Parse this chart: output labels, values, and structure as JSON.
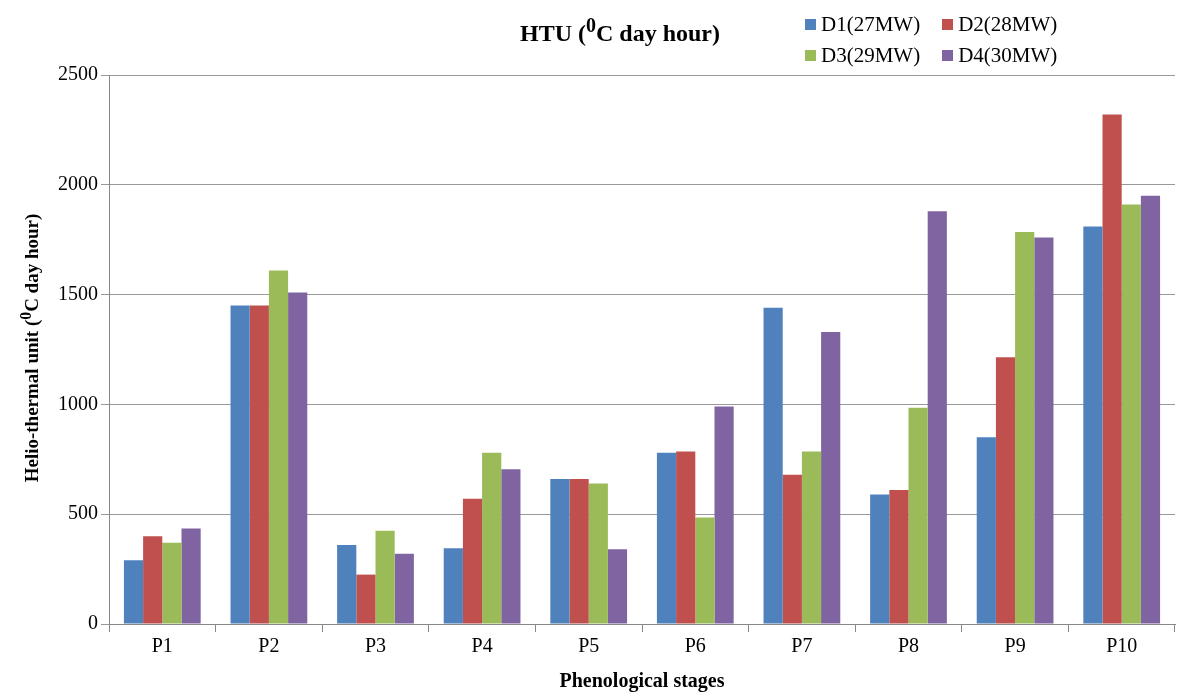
{
  "chart_data": {
    "type": "bar",
    "title": "HTU ($^{0}$C day hour)",
    "xlabel": "Phenological stages",
    "ylabel": "Helio-thermal unit ($^{0}$C day hour)",
    "categories": [
      "P1",
      "P2",
      "P3",
      "P4",
      "P5",
      "P6",
      "P7",
      "P8",
      "P9",
      "P10"
    ],
    "series": [
      {
        "name": "D1(27MW)",
        "color": "#4f81bd",
        "values": [
          290,
          1450,
          360,
          345,
          660,
          780,
          1440,
          590,
          850,
          1810
        ]
      },
      {
        "name": "D2(28MW)",
        "color": "#c0504d",
        "values": [
          400,
          1450,
          225,
          570,
          660,
          785,
          680,
          610,
          1215,
          2320
        ]
      },
      {
        "name": "D3(29MW)",
        "color": "#9bbb59",
        "values": [
          370,
          1610,
          425,
          780,
          640,
          485,
          785,
          985,
          1785,
          1910
        ]
      },
      {
        "name": "D4(30MW)",
        "color": "#8064a2",
        "values": [
          435,
          1510,
          320,
          705,
          340,
          990,
          1330,
          1880,
          1760,
          1950
        ]
      }
    ],
    "ylim": [
      0,
      2500
    ],
    "yticks": [
      0,
      500,
      1000,
      1500,
      2000,
      2500
    ],
    "grid": "y",
    "legend": "top right"
  }
}
